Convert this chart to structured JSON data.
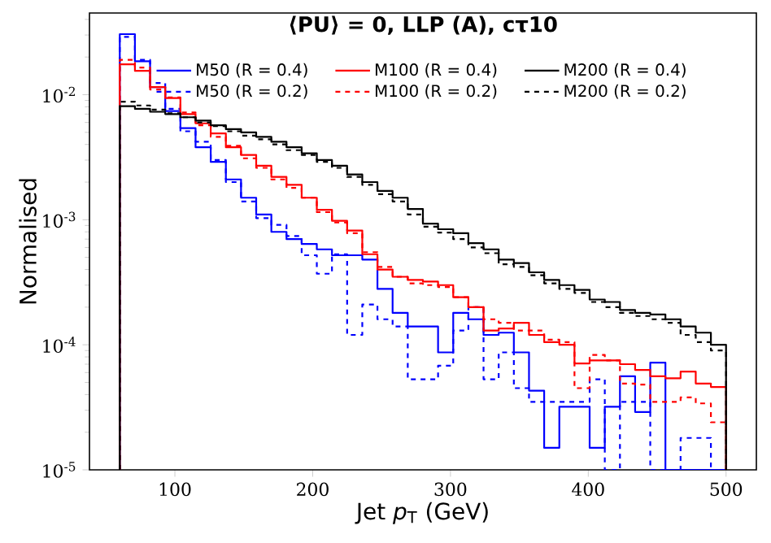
{
  "chart_data": {
    "type": "histogram",
    "title": "⟨PU⟩ = 0, LLP (A), cτ10",
    "xlabel": "Jet *p*$_{T}$ (GeV)",
    "ylabel": "Normalised",
    "bins": [
      60,
      71,
      82,
      93,
      104,
      115,
      126,
      137,
      148,
      159,
      170,
      181,
      192,
      203,
      214,
      225,
      236,
      247,
      258,
      269,
      280,
      291,
      302,
      313,
      324,
      335,
      346,
      357,
      368,
      379,
      390,
      401,
      412,
      423,
      434,
      445,
      456,
      467,
      478,
      489,
      500
    ],
    "series": [
      {
        "name": "M50 (R = 0.4)",
        "color": "#0000ff",
        "line_style": "solid",
        "values": [
          0.0305,
          0.0185,
          0.0115,
          0.0074,
          0.0054,
          0.0038,
          0.0029,
          0.0021,
          0.0015,
          0.0011,
          0.0008,
          0.0007,
          0.00064,
          0.00058,
          0.00052,
          0.00052,
          0.00048,
          0.00028,
          0.00018,
          0.00014,
          0.00014,
          8.7e-05,
          0.00018,
          0.00016,
          0.00012,
          0.000125,
          8.7e-05,
          4.3e-05,
          1.5e-05,
          3.2e-05,
          3.2e-05,
          1.5e-05,
          3.2e-05,
          5.6e-05,
          2.9e-05,
          7.2e-05,
          null,
          null,
          null,
          null
        ]
      },
      {
        "name": "M50 (R = 0.2)",
        "color": "#0000fe",
        "line_style": "dashed",
        "values": [
          0.029,
          0.019,
          0.0124,
          0.0077,
          0.0051,
          0.0042,
          0.003,
          0.002,
          0.0014,
          0.00103,
          0.00091,
          0.00074,
          0.00052,
          0.00037,
          0.00053,
          0.00012,
          0.00021,
          0.00016,
          0.00014,
          5.3e-05,
          5.3e-05,
          6.8e-05,
          0.00013,
          0.0002,
          5.3e-05,
          8.7e-05,
          4.5e-05,
          3.5e-05,
          3.5e-05,
          3.5e-05,
          3.5e-05,
          5.3e-05,
          null,
          3.5e-05,
          3.5e-05,
          null,
          null,
          1.8e-05,
          1.8e-05,
          null
        ]
      },
      {
        "name": "M100 (R = 0.4)",
        "color": "#ff0000",
        "line_style": "solid",
        "values": [
          0.0175,
          0.0155,
          0.0115,
          0.0094,
          0.007,
          0.0059,
          0.0049,
          0.0038,
          0.0033,
          0.0027,
          0.0022,
          0.0019,
          0.0015,
          0.0012,
          0.00098,
          0.00082,
          0.00053,
          0.0004,
          0.00035,
          0.00033,
          0.00032,
          0.0003,
          0.00024,
          0.0002,
          0.00013,
          0.000135,
          0.00015,
          0.00012,
          0.000105,
          0.0001,
          7.1e-05,
          7.5e-05,
          7.5e-05,
          7e-05,
          6.3e-05,
          5.6e-05,
          5.4e-05,
          6.1e-05,
          4.9e-05,
          4.6e-05
        ]
      },
      {
        "name": "M100 (R = 0.2)",
        "color": "#fe0000",
        "line_style": "dashed",
        "values": [
          0.019,
          0.0165,
          0.011,
          0.0095,
          0.0072,
          0.0057,
          0.0046,
          0.0039,
          0.0031,
          0.0026,
          0.0021,
          0.0018,
          0.0015,
          0.00115,
          0.00095,
          0.00078,
          0.00055,
          0.00042,
          0.00035,
          0.00031,
          0.0003,
          0.00029,
          0.00024,
          0.0002,
          0.00016,
          0.00015,
          0.00013,
          0.00013,
          0.00011,
          0.000105,
          4.5e-05,
          8.3e-05,
          7.5e-05,
          4.9e-05,
          4.8e-05,
          3.5e-05,
          3.5e-05,
          3.8e-05,
          3.4e-05,
          2.4e-05
        ]
      },
      {
        "name": "M200 (R = 0.4)",
        "color": "#000000",
        "line_style": "solid",
        "values": [
          0.0081,
          0.0077,
          0.0073,
          0.007,
          0.0066,
          0.0062,
          0.0057,
          0.0053,
          0.005,
          0.0046,
          0.0042,
          0.0038,
          0.0034,
          0.003,
          0.0027,
          0.0023,
          0.002,
          0.0017,
          0.0015,
          0.00122,
          0.00093,
          0.00084,
          0.00078,
          0.00065,
          0.00058,
          0.00048,
          0.00045,
          0.00038,
          0.00033,
          0.0003,
          0.000275,
          0.00023,
          0.00022,
          0.00019,
          0.00018,
          0.000175,
          0.00016,
          0.00014,
          0.000125,
          0.0001
        ]
      },
      {
        "name": "M200 (R = 0.2)",
        "color": "#010101",
        "line_style": "dashed",
        "values": [
          0.0088,
          0.0082,
          0.0076,
          0.0071,
          0.0066,
          0.006,
          0.0056,
          0.0051,
          0.0047,
          0.0044,
          0.004,
          0.0036,
          0.0033,
          0.0029,
          0.0026,
          0.0022,
          0.0019,
          0.0016,
          0.0014,
          0.0011,
          0.00088,
          0.00079,
          0.0007,
          0.0006,
          0.00054,
          0.00044,
          0.00042,
          0.00036,
          0.00031,
          0.00028,
          0.00026,
          0.00022,
          0.0002,
          0.00018,
          0.00017,
          0.00016,
          0.00015,
          0.00012,
          0.000105,
          9e-05
        ]
      }
    ],
    "xlim": [
      38,
      522
    ],
    "ylim": [
      1e-05,
      0.045
    ],
    "xticks": [
      100,
      200,
      300,
      400,
      500
    ],
    "yticks": [
      {
        "value": 1e-05,
        "label": "10$^{-5}$"
      },
      {
        "value": 0.0001,
        "label": "10$^{-4}$"
      },
      {
        "value": 0.001,
        "label": "10$^{-3}$"
      },
      {
        "value": 0.01,
        "label": "10$^{-2}$"
      }
    ],
    "log": "y",
    "legend": "top"
  }
}
